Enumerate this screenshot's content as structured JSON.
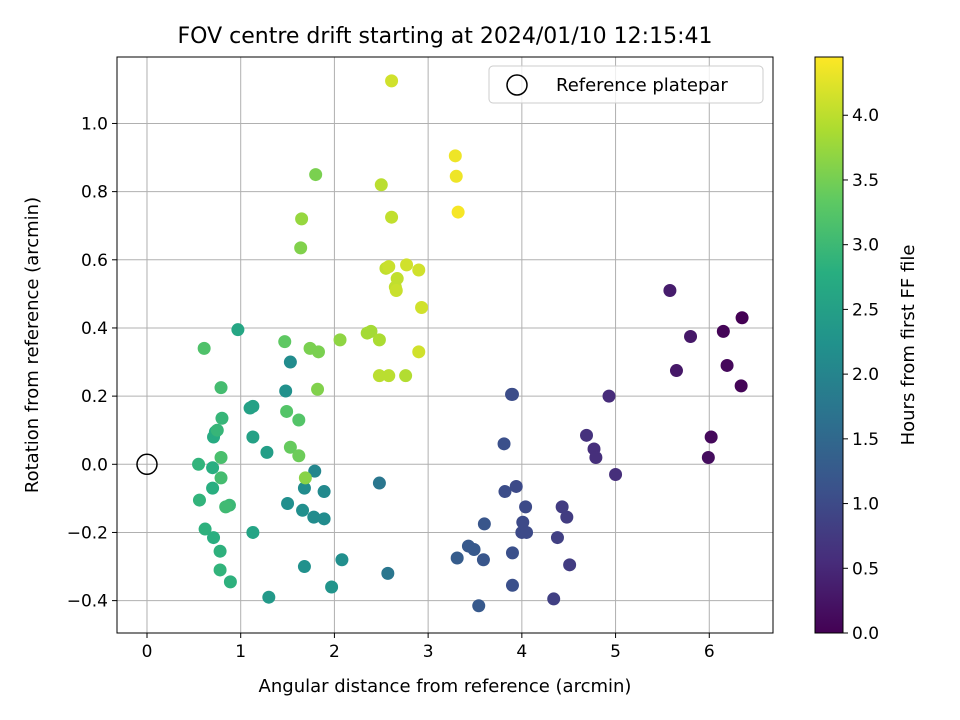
{
  "chart_data": {
    "type": "scatter",
    "title": "FOV centre drift starting at 2024/01/10 12:15:41",
    "xlabel": "Angular distance from reference (arcmin)",
    "ylabel": "Rotation from reference (arcmin)",
    "xlim": [
      -0.32,
      6.68
    ],
    "ylim": [
      -0.495,
      1.195
    ],
    "x_ticks": [
      0,
      1,
      2,
      3,
      4,
      5,
      6
    ],
    "x_tick_labels": [
      "0",
      "1",
      "2",
      "3",
      "4",
      "5",
      "6"
    ],
    "y_ticks": [
      -0.4,
      -0.2,
      0.0,
      0.2,
      0.4,
      0.6,
      0.8,
      1.0
    ],
    "y_tick_labels": [
      "−0.4",
      "−0.2",
      "0.0",
      "0.2",
      "0.4",
      "0.6",
      "0.8",
      "1.0"
    ],
    "grid": true,
    "legend": {
      "position": "top-right",
      "entries": [
        {
          "label": "Reference platepar",
          "marker": "open-circle"
        }
      ]
    },
    "reference_point": {
      "x": 0,
      "y": 0
    },
    "colorbar": {
      "label": "Hours from first FF file",
      "colormap": "viridis",
      "range": [
        0.0,
        4.45
      ],
      "ticks": [
        0.0,
        0.5,
        1.0,
        1.5,
        2.0,
        2.5,
        3.0,
        3.5,
        4.0
      ],
      "tick_labels": [
        "0.0",
        "0.5",
        "1.0",
        "1.5",
        "2.0",
        "2.5",
        "3.0",
        "3.5",
        "4.0"
      ]
    },
    "points": [
      {
        "x": 6.35,
        "y": 0.43,
        "c": 0.0
      },
      {
        "x": 6.15,
        "y": 0.39,
        "c": 0.05
      },
      {
        "x": 6.19,
        "y": 0.29,
        "c": 0.1
      },
      {
        "x": 6.34,
        "y": 0.23,
        "c": 0.05
      },
      {
        "x": 6.02,
        "y": 0.08,
        "c": 0.1
      },
      {
        "x": 5.99,
        "y": 0.02,
        "c": 0.15
      },
      {
        "x": 5.58,
        "y": 0.51,
        "c": 0.35
      },
      {
        "x": 5.8,
        "y": 0.375,
        "c": 0.3
      },
      {
        "x": 5.65,
        "y": 0.275,
        "c": 0.3
      },
      {
        "x": 4.93,
        "y": 0.2,
        "c": 0.55
      },
      {
        "x": 4.69,
        "y": 0.085,
        "c": 0.65
      },
      {
        "x": 4.77,
        "y": 0.045,
        "c": 0.6
      },
      {
        "x": 4.79,
        "y": 0.02,
        "c": 0.6
      },
      {
        "x": 5.0,
        "y": -0.03,
        "c": 0.6
      },
      {
        "x": 4.43,
        "y": -0.125,
        "c": 0.8
      },
      {
        "x": 4.48,
        "y": -0.155,
        "c": 0.8
      },
      {
        "x": 4.38,
        "y": -0.215,
        "c": 0.85
      },
      {
        "x": 4.51,
        "y": -0.295,
        "c": 0.8
      },
      {
        "x": 4.34,
        "y": -0.395,
        "c": 0.85
      },
      {
        "x": 3.89,
        "y": 0.205,
        "c": 1.05
      },
      {
        "x": 3.9,
        "y": 0.205,
        "c": 1.05
      },
      {
        "x": 3.81,
        "y": 0.06,
        "c": 1.1
      },
      {
        "x": 3.94,
        "y": -0.065,
        "c": 1.0
      },
      {
        "x": 3.82,
        "y": -0.08,
        "c": 1.05
      },
      {
        "x": 4.04,
        "y": -0.125,
        "c": 1.0
      },
      {
        "x": 4.01,
        "y": -0.17,
        "c": 1.0
      },
      {
        "x": 4.0,
        "y": -0.2,
        "c": 1.0
      },
      {
        "x": 4.05,
        "y": -0.2,
        "c": 1.0
      },
      {
        "x": 3.6,
        "y": -0.175,
        "c": 1.2
      },
      {
        "x": 3.9,
        "y": -0.26,
        "c": 1.1
      },
      {
        "x": 3.9,
        "y": -0.355,
        "c": 1.1
      },
      {
        "x": 3.43,
        "y": -0.24,
        "c": 1.25
      },
      {
        "x": 3.49,
        "y": -0.25,
        "c": 1.25
      },
      {
        "x": 3.31,
        "y": -0.275,
        "c": 1.3
      },
      {
        "x": 3.59,
        "y": -0.28,
        "c": 1.2
      },
      {
        "x": 3.54,
        "y": -0.415,
        "c": 1.25
      },
      {
        "x": 2.48,
        "y": -0.055,
        "c": 1.75
      },
      {
        "x": 2.57,
        "y": -0.32,
        "c": 1.75
      },
      {
        "x": 1.53,
        "y": 0.3,
        "c": 2.15
      },
      {
        "x": 1.48,
        "y": 0.215,
        "c": 2.25
      },
      {
        "x": 1.79,
        "y": -0.02,
        "c": 2.05
      },
      {
        "x": 1.68,
        "y": -0.07,
        "c": 2.15
      },
      {
        "x": 1.89,
        "y": -0.08,
        "c": 2.1
      },
      {
        "x": 1.5,
        "y": -0.115,
        "c": 2.2
      },
      {
        "x": 1.66,
        "y": -0.135,
        "c": 2.2
      },
      {
        "x": 1.78,
        "y": -0.155,
        "c": 2.15
      },
      {
        "x": 1.89,
        "y": -0.16,
        "c": 2.15
      },
      {
        "x": 2.08,
        "y": -0.28,
        "c": 2.2
      },
      {
        "x": 1.68,
        "y": -0.3,
        "c": 2.25
      },
      {
        "x": 1.97,
        "y": -0.36,
        "c": 2.3
      },
      {
        "x": 1.3,
        "y": -0.39,
        "c": 2.4
      },
      {
        "x": 1.28,
        "y": 0.035,
        "c": 2.5
      },
      {
        "x": 1.13,
        "y": 0.17,
        "c": 2.55
      },
      {
        "x": 1.1,
        "y": 0.165,
        "c": 2.55
      },
      {
        "x": 1.13,
        "y": 0.08,
        "c": 2.55
      },
      {
        "x": 1.13,
        "y": -0.2,
        "c": 2.6
      },
      {
        "x": 0.97,
        "y": 0.395,
        "c": 2.65
      },
      {
        "x": 0.71,
        "y": 0.08,
        "c": 2.75
      },
      {
        "x": 0.73,
        "y": 0.095,
        "c": 2.75
      },
      {
        "x": 0.7,
        "y": -0.01,
        "c": 2.8
      },
      {
        "x": 0.7,
        "y": -0.07,
        "c": 2.8
      },
      {
        "x": 0.71,
        "y": -0.215,
        "c": 2.8
      },
      {
        "x": 0.62,
        "y": -0.19,
        "c": 2.85
      },
      {
        "x": 0.78,
        "y": -0.255,
        "c": 2.85
      },
      {
        "x": 0.89,
        "y": -0.345,
        "c": 2.85
      },
      {
        "x": 0.55,
        "y": 0.0,
        "c": 2.9
      },
      {
        "x": 0.56,
        "y": -0.105,
        "c": 2.9
      },
      {
        "x": 0.8,
        "y": 0.135,
        "c": 2.95
      },
      {
        "x": 0.75,
        "y": 0.1,
        "c": 2.95
      },
      {
        "x": 0.78,
        "y": -0.31,
        "c": 2.9
      },
      {
        "x": 0.88,
        "y": -0.12,
        "c": 3.0
      },
      {
        "x": 0.84,
        "y": -0.125,
        "c": 3.05
      },
      {
        "x": 0.79,
        "y": 0.225,
        "c": 3.1
      },
      {
        "x": 0.79,
        "y": 0.02,
        "c": 3.15
      },
      {
        "x": 0.79,
        "y": -0.04,
        "c": 3.1
      },
      {
        "x": 0.61,
        "y": 0.34,
        "c": 3.2
      },
      {
        "x": 1.47,
        "y": 0.36,
        "c": 3.35
      },
      {
        "x": 1.49,
        "y": 0.155,
        "c": 3.25
      },
      {
        "x": 1.62,
        "y": 0.13,
        "c": 3.25
      },
      {
        "x": 1.53,
        "y": 0.05,
        "c": 3.4
      },
      {
        "x": 1.62,
        "y": 0.025,
        "c": 3.45
      },
      {
        "x": 1.69,
        "y": -0.04,
        "c": 3.65
      },
      {
        "x": 1.74,
        "y": 0.34,
        "c": 3.55
      },
      {
        "x": 1.83,
        "y": 0.33,
        "c": 3.55
      },
      {
        "x": 1.82,
        "y": 0.22,
        "c": 3.6
      },
      {
        "x": 1.8,
        "y": 0.85,
        "c": 3.55
      },
      {
        "x": 1.64,
        "y": 0.635,
        "c": 3.6
      },
      {
        "x": 1.65,
        "y": 0.72,
        "c": 3.75
      },
      {
        "x": 2.06,
        "y": 0.365,
        "c": 3.7
      },
      {
        "x": 2.35,
        "y": 0.385,
        "c": 3.85
      },
      {
        "x": 2.39,
        "y": 0.39,
        "c": 3.85
      },
      {
        "x": 2.48,
        "y": 0.365,
        "c": 3.9
      },
      {
        "x": 2.48,
        "y": 0.26,
        "c": 4.0
      },
      {
        "x": 2.58,
        "y": 0.26,
        "c": 4.0
      },
      {
        "x": 2.76,
        "y": 0.26,
        "c": 3.95
      },
      {
        "x": 2.5,
        "y": 0.82,
        "c": 4.0
      },
      {
        "x": 2.61,
        "y": 0.725,
        "c": 4.05
      },
      {
        "x": 2.55,
        "y": 0.575,
        "c": 4.05
      },
      {
        "x": 2.58,
        "y": 0.58,
        "c": 4.1
      },
      {
        "x": 2.67,
        "y": 0.545,
        "c": 4.05
      },
      {
        "x": 2.65,
        "y": 0.52,
        "c": 4.05
      },
      {
        "x": 2.66,
        "y": 0.51,
        "c": 4.1
      },
      {
        "x": 2.77,
        "y": 0.585,
        "c": 4.15
      },
      {
        "x": 2.9,
        "y": 0.57,
        "c": 4.15
      },
      {
        "x": 2.93,
        "y": 0.46,
        "c": 4.15
      },
      {
        "x": 2.9,
        "y": 0.33,
        "c": 4.15
      },
      {
        "x": 2.61,
        "y": 1.125,
        "c": 4.15
      },
      {
        "x": 3.29,
        "y": 0.905,
        "c": 4.35
      },
      {
        "x": 3.3,
        "y": 0.845,
        "c": 4.35
      },
      {
        "x": 3.32,
        "y": 0.74,
        "c": 4.4
      }
    ]
  }
}
